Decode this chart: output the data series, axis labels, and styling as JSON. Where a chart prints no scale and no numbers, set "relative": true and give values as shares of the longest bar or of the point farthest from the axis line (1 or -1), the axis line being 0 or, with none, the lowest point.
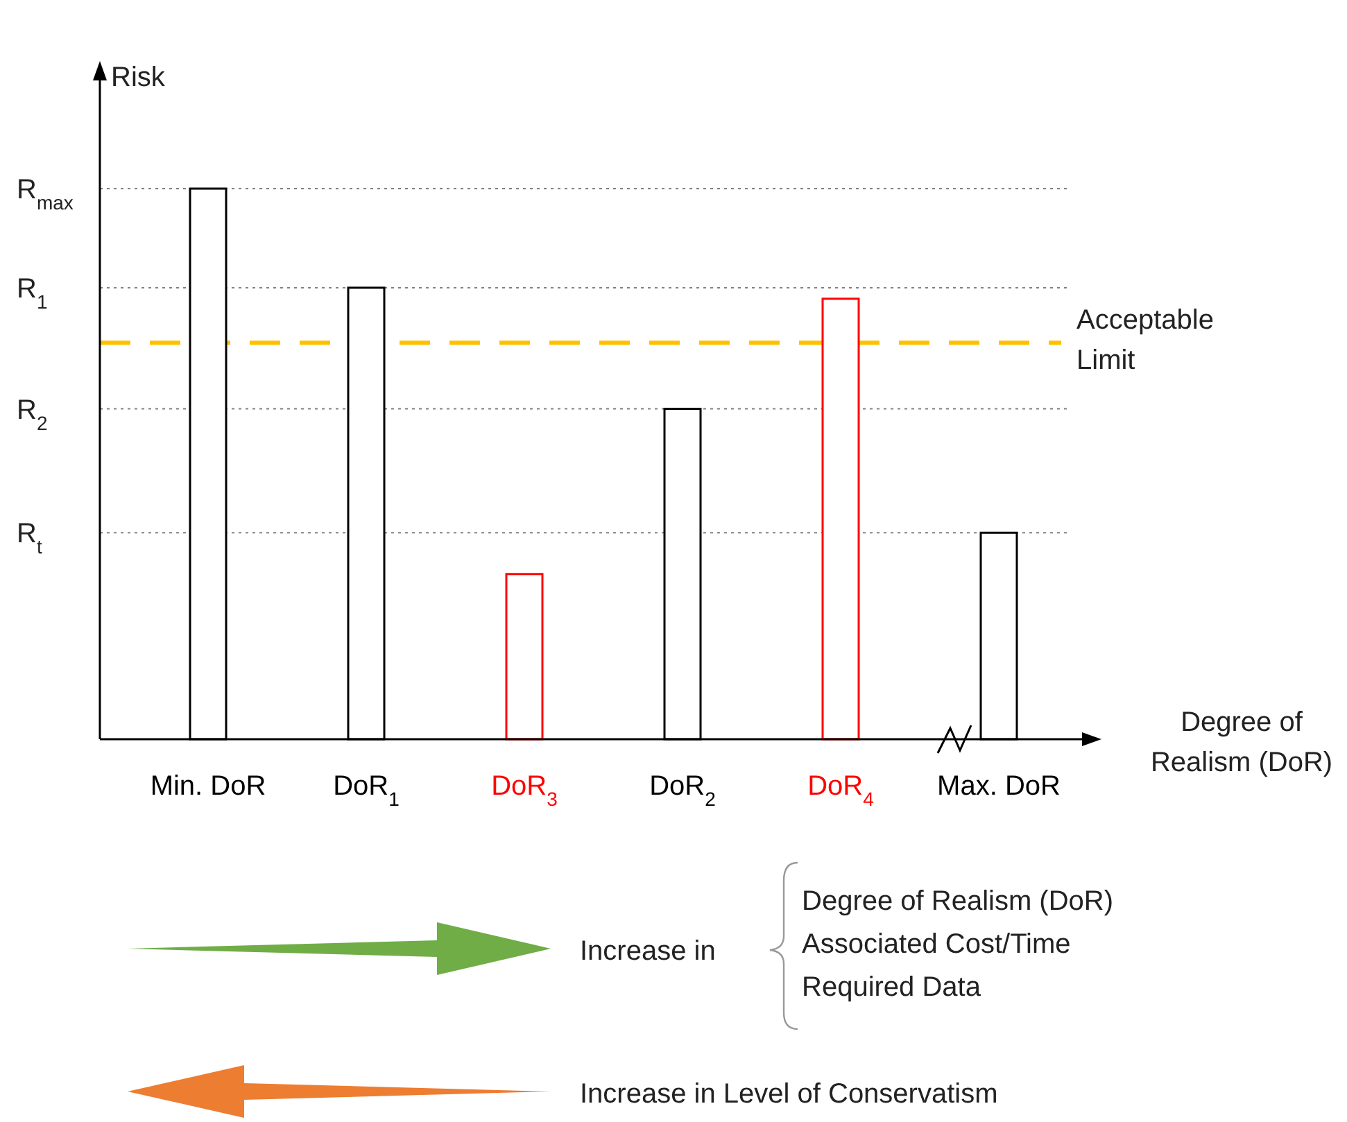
{
  "chart_data": {
    "type": "bar",
    "relative": true,
    "categories": [
      "Min. DoR",
      "DoR$_{1}$",
      "DoR$_{3}$",
      "DoR$_{2}$",
      "DoR$_{4}$",
      "Max. DoR"
    ],
    "values": [
      1,
      0.82,
      0.3,
      0.6,
      0.8,
      0.375
    ],
    "colors": [
      "#000000",
      "#000000",
      "#ff0000",
      "#000000",
      "#ff0000",
      "#000000"
    ],
    "xlabel": "Degree of Realism (DoR)",
    "ylabel": "Risk",
    "ref_lines": [
      {
        "axis": "y",
        "value": 1,
        "label": "R$_{max}$",
        "line_style": "dotted",
        "color": "#808080"
      },
      {
        "axis": "y",
        "value": 0.82,
        "label": "R$_{1}$",
        "line_style": "dotted",
        "color": "#808080"
      },
      {
        "axis": "y",
        "value": 0.6,
        "label": "R$_{2}$",
        "line_style": "dotted",
        "color": "#808080"
      },
      {
        "axis": "y",
        "value": 0.375,
        "label": "R$_{t}$",
        "line_style": "dotted",
        "color": "#808080"
      },
      {
        "axis": "y",
        "value": 0.72,
        "label": "Acceptable Limit",
        "line_style": "dashed",
        "color": "#ffc000"
      }
    ],
    "annotations": [
      "Increase in",
      "Degree of Realism (DoR)",
      "Associated Cost/Time",
      "Required Data",
      "Increase in Level of Conservatism"
    ]
  }
}
